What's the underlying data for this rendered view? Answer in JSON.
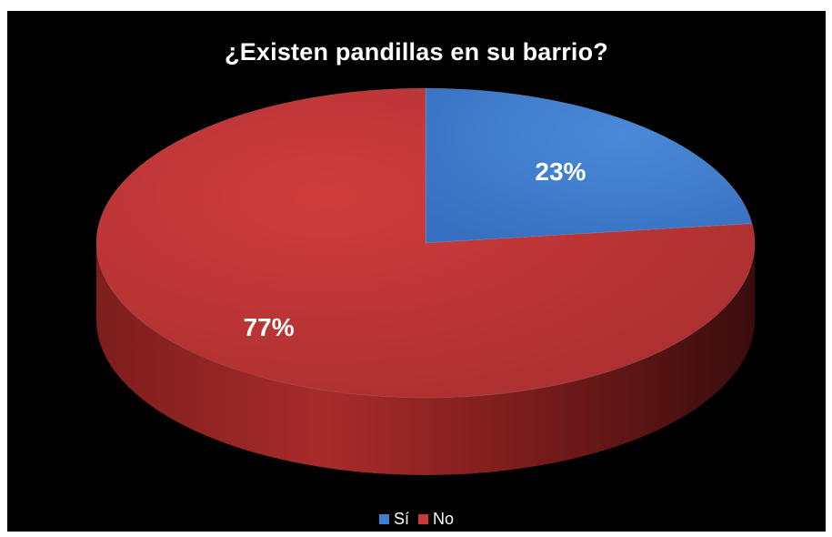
{
  "chart_data": {
    "type": "pie",
    "title": "¿Existen pandillas en su barrio?",
    "categories": [
      "Sí",
      "No"
    ],
    "values": [
      23,
      77
    ],
    "data_labels": [
      "23%",
      "77%"
    ],
    "colors": [
      "#3f7fd0",
      "#c93a3a"
    ],
    "legend_position": "bottom",
    "style": "3d"
  }
}
